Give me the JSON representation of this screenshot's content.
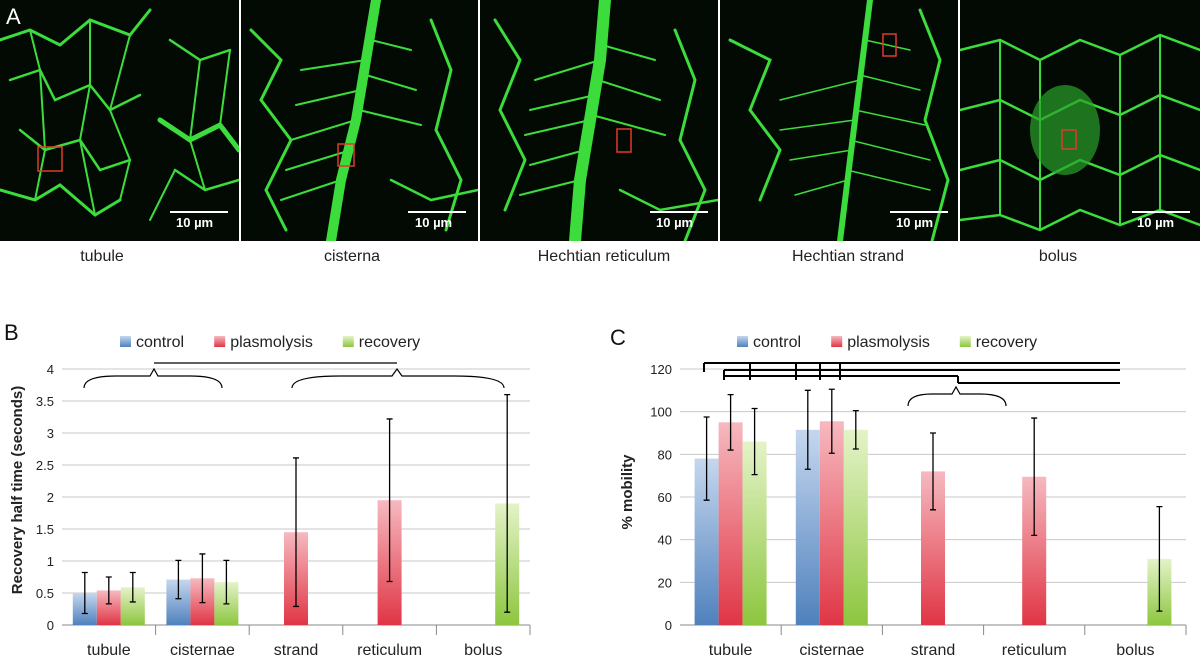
{
  "panels": {
    "a": {
      "letter": "A",
      "scale_text": "10 µm",
      "images": [
        {
          "caption": "tubule"
        },
        {
          "caption": "cisterna"
        },
        {
          "caption": "Hechtian reticulum"
        },
        {
          "caption": "Hechtian strand"
        },
        {
          "caption": "bolus"
        }
      ]
    },
    "b": {
      "letter": "B"
    },
    "c": {
      "letter": "C"
    }
  },
  "colors": {
    "control": "#4f81bd",
    "plasmolysis": "#e84a5a",
    "recovery": "#8dc63f",
    "bracket": "#000000",
    "grid": "#c8c8c8",
    "fluor": "#3cdc3c"
  },
  "chart_data": [
    {
      "type": "bar",
      "categories": [
        "tubule",
        "cisternae",
        "strand",
        "reticulum",
        "bolus"
      ],
      "ylabel": "Recovery half time (seconds)",
      "ylim": [
        0,
        4
      ],
      "yticks": [
        "0",
        "0.5",
        "1",
        "1.5",
        "2",
        "2.5",
        "3",
        "3.5",
        "4"
      ],
      "grid": true,
      "legend_position": "top",
      "series": [
        {
          "name": "control",
          "values": [
            0.5,
            0.71,
            null,
            null,
            null
          ],
          "errors": [
            0.32,
            0.3,
            null,
            null,
            null
          ]
        },
        {
          "name": "plasmolysis",
          "values": [
            0.54,
            0.73,
            1.45,
            1.95,
            null
          ],
          "errors": [
            0.21,
            0.38,
            1.16,
            1.27,
            null
          ]
        },
        {
          "name": "recovery",
          "values": [
            0.59,
            0.67,
            null,
            null,
            1.9
          ],
          "errors": [
            0.23,
            0.34,
            null,
            null,
            1.7
          ]
        }
      ]
    },
    {
      "type": "bar",
      "categories": [
        "tubule",
        "cisternae",
        "strand",
        "reticulum",
        "bolus"
      ],
      "ylabel": "% mobility",
      "ylim": [
        0,
        120
      ],
      "yticks": [
        "0",
        "20",
        "40",
        "60",
        "80",
        "100",
        "120"
      ],
      "grid": true,
      "legend_position": "top",
      "series": [
        {
          "name": "control",
          "values": [
            78,
            91.5,
            null,
            null,
            null
          ],
          "errors": [
            19.5,
            18.5,
            null,
            null,
            null
          ]
        },
        {
          "name": "plasmolysis",
          "values": [
            95,
            95.5,
            72,
            69.5,
            null
          ],
          "errors": [
            13,
            15,
            18,
            27.5,
            null
          ]
        },
        {
          "name": "recovery",
          "values": [
            86,
            91.5,
            null,
            null,
            31
          ],
          "errors": [
            15.5,
            9,
            null,
            null,
            24.5
          ]
        }
      ]
    }
  ]
}
